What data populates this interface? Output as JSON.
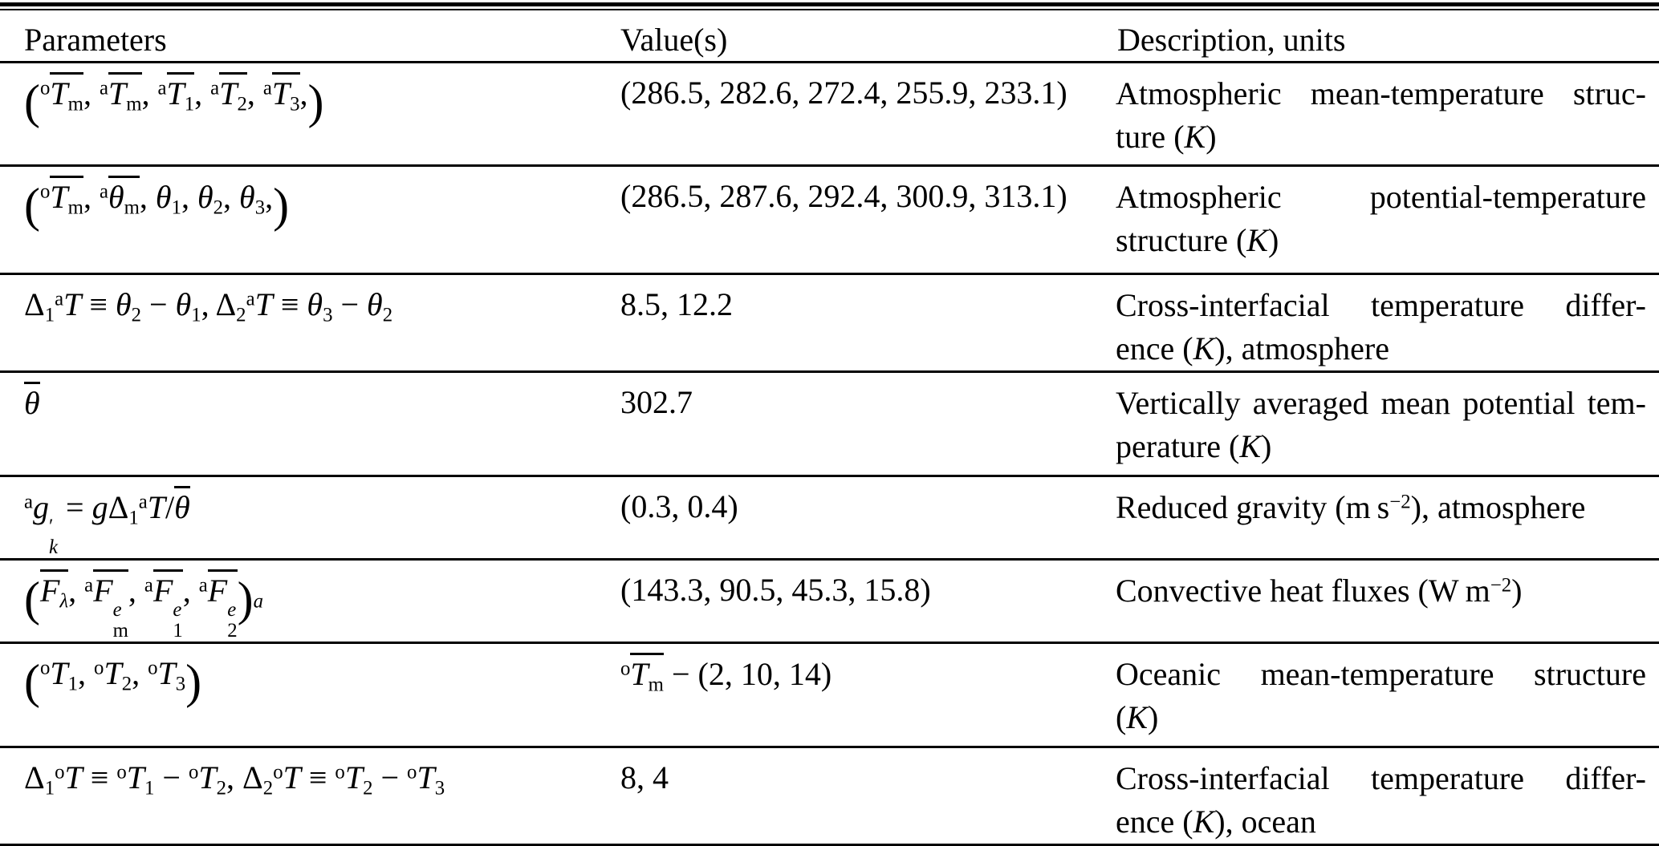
{
  "table": {
    "headers": [
      {
        "label": "Parameters"
      },
      {
        "label": "Value(s)"
      },
      {
        "label": "Description, units"
      }
    ],
    "rows": [
      {
        "param_html": "<span class='lp'>(</span><sup>o</sup><span class='ov'><i>T</i><sub>m</sub></span>, <sup>a</sup><span class='ov'><i>T</i><sub>m</sub></span>, <sup>a</sup><span class='ov'><i>T</i><sub>1</sub></span>, <sup>a</sup><span class='ov'><i>T</i><sub>2</sub></span>, <sup>a</sup><span class='ov'><i>T</i><sub>3</sub></span>,<span class='lp'>)</span>",
        "value_html": "(286.5, 282.6, 272.4, 255.9, 233.1)",
        "desc_lines_html": [
          "Atmospheric mean-temperature struc-",
          "ture (<i>K</i>)"
        ]
      },
      {
        "param_html": "<span class='lp'>(</span><sup>o</sup><span class='ov'><i>T</i><sub>m</sub></span>, <sup>a</sup><span class='ov'><i>θ</i><sub>m</sub></span>, <i>θ</i><sub>1</sub>, <i>θ</i><sub>2</sub>, <i>θ</i><sub>3</sub>,<span class='lp'>)</span>",
        "value_html": "(286.5, 287.6, 292.4, 300.9, 313.1)",
        "desc_lines_html": [
          "Atmospheric potential-temperature",
          "structure (<i>K</i>)"
        ]
      },
      {
        "param_html": "Δ<sub>1</sub><sup>a</sup><i>T</i> ≡ <i>θ</i><sub>2</sub> − <i>θ</i><sub>1</sub>, Δ<sub>2</sub><sup>a</sup><i>T</i> ≡ <i>θ</i><sub>3</sub> − <i>θ</i><sub>2</sub>",
        "value_html": "8.5, 12.2",
        "desc_lines_html": [
          "Cross-interfacial temperature differ-",
          "ence (<i>K</i>), atmosphere"
        ]
      },
      {
        "param_html": "<span class='ov'><i>θ</i></span>",
        "value_html": "302.7",
        "desc_lines_html": [
          "Vertically averaged mean potential tem-",
          "perature (<i>K</i>)"
        ]
      },
      {
        "param_html": "<sup>a</sup><i>g</i><span class='ss'><span>′</span><span><i>k</i></span></span> = <i>g</i>Δ<sub>1</sub><sup>a</sup><i>T</i>/<span class='ov'><i>θ</i></span>",
        "value_html": "(0.3, 0.4)",
        "desc_lines_html": [
          "Reduced gravity (m&#8201;s<sup>−2</sup>), atmosphere"
        ]
      },
      {
        "param_html": "<span class='lp'>(</span><span class='ov'><i>F</i><sub><i>λ</i></sub></span>, <sup>a</sup><span class='ov'><i>F</i><span class='ss'><span><i>e</i></span><span>m</span></span></span>, <sup>a</sup><span class='ov'><i>F</i><span class='ss'><span><i>e</i></span><span>1</span></span></span>, <sup>a</sup><span class='ov'><i>F</i><span class='ss'><span><i>e</i></span><span>2</span></span></span><span class='lp'>)</span><sub><i>a</i></sub>",
        "value_html": "(143.3, 90.5, 45.3, 15.8)",
        "desc_lines_html": [
          "Convective heat fluxes (W&#8201;m<sup>−2</sup>)"
        ]
      },
      {
        "param_html": "<span class='lp'>(</span><sup>o</sup><i>T</i><sub>1</sub>, <sup>o</sup><i>T</i><sub>2</sub>, <sup>o</sup><i>T</i><sub>3</sub><span class='lp'>)</span>",
        "value_html": "<sup>o</sup><span class='ov'><i>T</i><sub>m</sub></span> − (2, 10, 14)",
        "desc_lines_html": [
          "Oceanic mean-temperature structure",
          "(<i>K</i>)"
        ]
      },
      {
        "param_html": "Δ<sub>1</sub><sup>o</sup><i>T</i> ≡ <sup>o</sup><i>T</i><sub>1</sub> − <sup>o</sup><i>T</i><sub>2</sub>, Δ<sub>2</sub><sup>o</sup><i>T</i> ≡ <sup>o</sup><i>T</i><sub>2</sub> − <sup>o</sup><i>T</i><sub>3</sub>",
        "value_html": "8, 4",
        "desc_lines_html": [
          "Cross-interfacial temperature differ-",
          "ence (<i>K</i>), ocean"
        ]
      }
    ]
  }
}
